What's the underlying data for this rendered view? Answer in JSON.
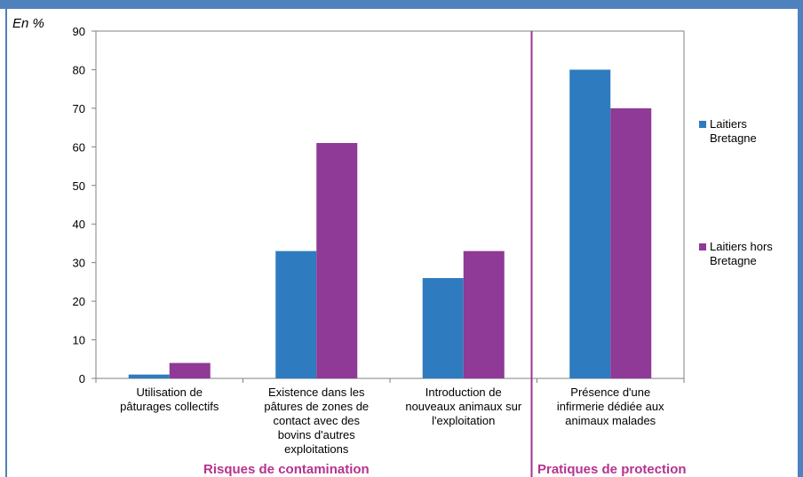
{
  "chart_data": {
    "type": "bar",
    "unit_label": "En %",
    "ylim": [
      0,
      90
    ],
    "yticks": [
      0,
      10,
      20,
      30,
      40,
      50,
      60,
      70,
      80,
      90
    ],
    "grid": false,
    "legend_position": "right",
    "categories": [
      [
        "Utilisation de",
        "pâturages collectifs"
      ],
      [
        "Existence dans les",
        "pâtures de zones de",
        "contact avec des",
        "bovins d'autres",
        "exploitations"
      ],
      [
        "Introduction de",
        "nouveaux animaux sur",
        "l'exploitation"
      ],
      [
        "Présence d'une",
        "infirmerie dédiée aux",
        "animaux malades"
      ]
    ],
    "series": [
      {
        "name": "Laitiers Bretagne",
        "legend_lines": [
          "Laitiers",
          "Bretagne"
        ],
        "color": "#2e7bbf",
        "values": [
          1,
          33,
          26,
          80
        ]
      },
      {
        "name": "Laitiers hors Bretagne",
        "legend_lines": [
          "Laitiers hors",
          "Bretagne"
        ],
        "color": "#8e3a96",
        "values": [
          4,
          61,
          33,
          70
        ]
      }
    ],
    "groups": [
      {
        "label": "Risques de contamination",
        "categories": [
          0,
          1,
          2
        ]
      },
      {
        "label": "Pratiques de protection",
        "categories": [
          3
        ]
      }
    ],
    "divider_color": "#a0338f"
  }
}
